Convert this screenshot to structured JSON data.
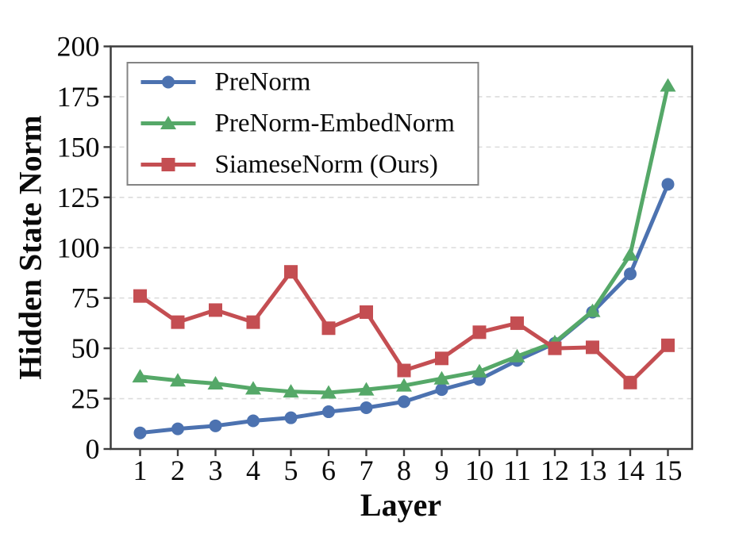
{
  "figure": {
    "background": "#ffffff"
  },
  "chart_data": {
    "type": "line",
    "title": "",
    "xlabel": "Layer",
    "ylabel": "Hidden State Norm",
    "x": [
      1,
      2,
      3,
      4,
      5,
      6,
      7,
      8,
      9,
      10,
      11,
      12,
      13,
      14,
      15
    ],
    "ylim": [
      0,
      200
    ],
    "yticks": [
      0,
      25,
      50,
      75,
      100,
      125,
      150,
      175,
      200
    ],
    "grid": "horizontal-dashed",
    "legend_position": "upper-left",
    "series": [
      {
        "name": "PreNorm",
        "color": "#4C72B0",
        "marker": "circle",
        "values": [
          8,
          10,
          11.5,
          14,
          15.5,
          18.5,
          20.5,
          23.5,
          29.5,
          34.5,
          44,
          52.5,
          68,
          87,
          131.5
        ]
      },
      {
        "name": "PreNorm-EmbedNorm",
        "color": "#55A868",
        "marker": "triangle",
        "values": [
          36,
          34,
          32.5,
          30,
          28.5,
          28,
          29.5,
          31.5,
          35,
          38.5,
          46,
          53,
          68.5,
          96.5,
          180.5
        ]
      },
      {
        "name": "SiameseNorm (Ours)",
        "color": "#C44E52",
        "marker": "square",
        "values": [
          76,
          63,
          69,
          63,
          88,
          60,
          68,
          39,
          45,
          58,
          62.5,
          50,
          50.5,
          33,
          51.5
        ]
      }
    ],
    "style_colors": {
      "gridline": "#dcdcdc",
      "spine": "#3c3c3c",
      "legend_border": "#848484",
      "text": "#0a0a0a"
    }
  }
}
